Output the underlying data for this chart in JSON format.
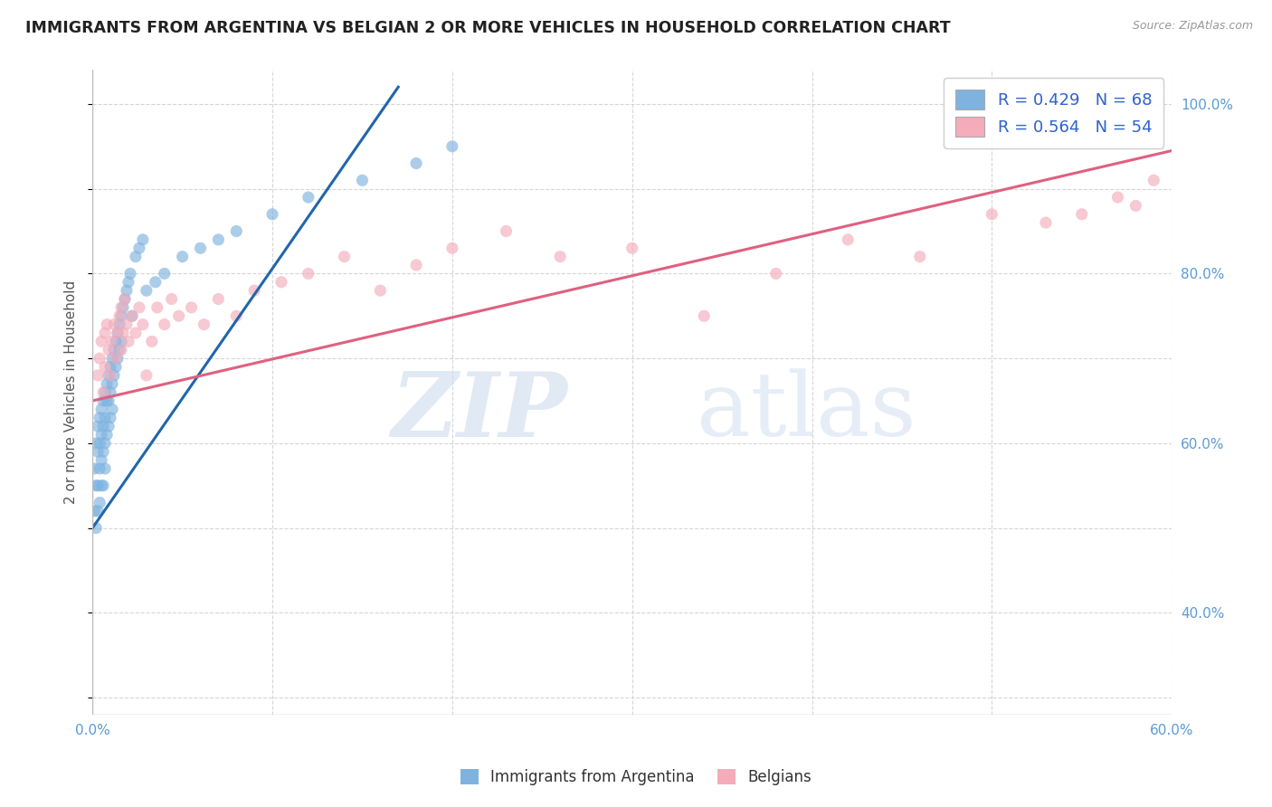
{
  "title": "IMMIGRANTS FROM ARGENTINA VS BELGIAN 2 OR MORE VEHICLES IN HOUSEHOLD CORRELATION CHART",
  "source": "Source: ZipAtlas.com",
  "ylabel": "2 or more Vehicles in Household",
  "xlim": [
    0.0,
    0.6
  ],
  "ylim": [
    0.28,
    1.04
  ],
  "xtick_positions": [
    0.0,
    0.1,
    0.2,
    0.3,
    0.4,
    0.5,
    0.6
  ],
  "xticklabels": [
    "0.0%",
    "",
    "",
    "",
    "",
    "",
    "60.0%"
  ],
  "ytick_positions": [
    0.4,
    0.6,
    0.8,
    1.0
  ],
  "yticklabels_right": [
    "40.0%",
    "60.0%",
    "80.0%",
    "100.0%"
  ],
  "blue_color": "#7EB3E0",
  "pink_color": "#F4ACBB",
  "blue_line_color": "#2166AC",
  "pink_line_color": "#E06080",
  "R_blue": 0.429,
  "N_blue": 68,
  "R_pink": 0.564,
  "N_pink": 54,
  "legend_label_blue": "Immigrants from Argentina",
  "legend_label_pink": "Belgians",
  "watermark_zip": "ZIP",
  "watermark_atlas": "atlas",
  "title_color": "#222222",
  "blue_x": [
    0.001,
    0.001,
    0.002,
    0.002,
    0.002,
    0.003,
    0.003,
    0.003,
    0.003,
    0.004,
    0.004,
    0.004,
    0.004,
    0.005,
    0.005,
    0.005,
    0.005,
    0.006,
    0.006,
    0.006,
    0.006,
    0.007,
    0.007,
    0.007,
    0.007,
    0.008,
    0.008,
    0.008,
    0.009,
    0.009,
    0.009,
    0.01,
    0.01,
    0.01,
    0.011,
    0.011,
    0.011,
    0.012,
    0.012,
    0.013,
    0.013,
    0.014,
    0.014,
    0.015,
    0.015,
    0.016,
    0.016,
    0.017,
    0.018,
    0.019,
    0.02,
    0.021,
    0.022,
    0.024,
    0.026,
    0.028,
    0.03,
    0.035,
    0.04,
    0.05,
    0.06,
    0.07,
    0.08,
    0.1,
    0.12,
    0.15,
    0.18,
    0.2
  ],
  "blue_y": [
    0.57,
    0.52,
    0.6,
    0.55,
    0.5,
    0.62,
    0.59,
    0.55,
    0.52,
    0.63,
    0.6,
    0.57,
    0.53,
    0.64,
    0.61,
    0.58,
    0.55,
    0.65,
    0.62,
    0.59,
    0.55,
    0.66,
    0.63,
    0.6,
    0.57,
    0.67,
    0.65,
    0.61,
    0.68,
    0.65,
    0.62,
    0.69,
    0.66,
    0.63,
    0.7,
    0.67,
    0.64,
    0.71,
    0.68,
    0.72,
    0.69,
    0.73,
    0.7,
    0.74,
    0.71,
    0.75,
    0.72,
    0.76,
    0.77,
    0.78,
    0.79,
    0.8,
    0.75,
    0.82,
    0.83,
    0.84,
    0.78,
    0.79,
    0.8,
    0.82,
    0.83,
    0.84,
    0.85,
    0.87,
    0.89,
    0.91,
    0.93,
    0.95
  ],
  "pink_x": [
    0.003,
    0.004,
    0.005,
    0.006,
    0.007,
    0.007,
    0.008,
    0.009,
    0.01,
    0.011,
    0.012,
    0.013,
    0.014,
    0.015,
    0.016,
    0.016,
    0.017,
    0.018,
    0.019,
    0.02,
    0.022,
    0.024,
    0.026,
    0.028,
    0.03,
    0.033,
    0.036,
    0.04,
    0.044,
    0.048,
    0.055,
    0.062,
    0.07,
    0.08,
    0.09,
    0.105,
    0.12,
    0.14,
    0.16,
    0.18,
    0.2,
    0.23,
    0.26,
    0.3,
    0.34,
    0.38,
    0.42,
    0.46,
    0.5,
    0.53,
    0.55,
    0.57,
    0.58,
    0.59
  ],
  "pink_y": [
    0.68,
    0.7,
    0.72,
    0.66,
    0.73,
    0.69,
    0.74,
    0.71,
    0.68,
    0.72,
    0.74,
    0.7,
    0.73,
    0.75,
    0.71,
    0.76,
    0.73,
    0.77,
    0.74,
    0.72,
    0.75,
    0.73,
    0.76,
    0.74,
    0.68,
    0.72,
    0.76,
    0.74,
    0.77,
    0.75,
    0.76,
    0.74,
    0.77,
    0.75,
    0.78,
    0.79,
    0.8,
    0.82,
    0.78,
    0.81,
    0.83,
    0.85,
    0.82,
    0.83,
    0.75,
    0.8,
    0.84,
    0.82,
    0.87,
    0.86,
    0.87,
    0.89,
    0.88,
    0.91
  ]
}
